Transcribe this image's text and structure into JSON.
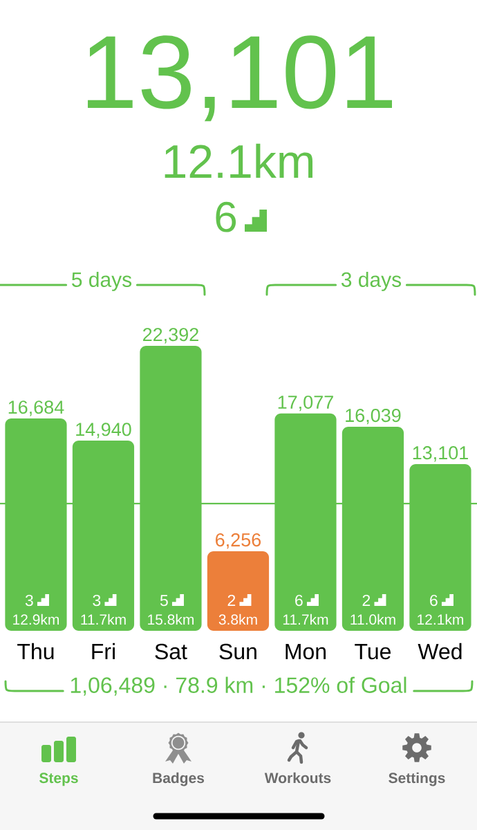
{
  "chart_data": {
    "type": "bar",
    "title": "13,101",
    "subtitle": "12.1km",
    "categories": [
      "Thu",
      "Fri",
      "Sat",
      "Sun",
      "Mon",
      "Tue",
      "Wed"
    ],
    "values": [
      16684,
      14940,
      22392,
      6256,
      17077,
      16039,
      13101
    ],
    "colors": [
      "#62c24d",
      "#62c24d",
      "#62c24d",
      "#ec7f3a",
      "#62c24d",
      "#62c24d",
      "#62c24d"
    ],
    "value_labels": [
      "16,684",
      "14,940",
      "22,392",
      "6,256",
      "17,077",
      "16,039",
      "13,101"
    ],
    "tick_labels": "x",
    "ref_lines": [
      {
        "axis": "y",
        "value": 10000,
        "color": "#62c24d"
      }
    ],
    "annotations": [
      "6",
      "5 days",
      "3 days",
      "3",
      "12.9km",
      "3",
      "11.7km",
      "5",
      "15.8km",
      "2",
      "3.8km",
      "6",
      "11.7km",
      "2",
      "11.0km",
      "6",
      "12.1km",
      "1,06,489 · 78.9 km · 152% of Goal",
      "Steps",
      "Badges",
      "Workouts",
      "Settings"
    ]
  }
}
